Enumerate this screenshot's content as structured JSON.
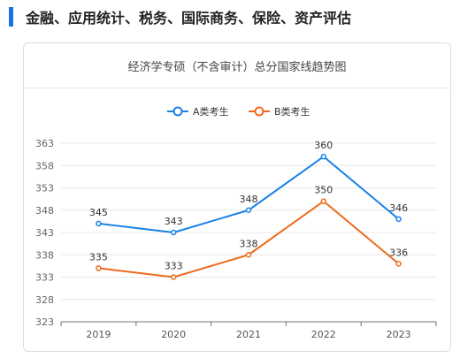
{
  "heading": "金融、应用统计、税务、国际商务、保险、资产评估",
  "colors": {
    "accent": "#1a73e8",
    "series_a": "#1a82e8",
    "series_b": "#ee6a1b"
  },
  "chart_data": {
    "type": "line",
    "title": "经济学专硕（不含审计）总分国家线趋势图",
    "xlabel": "",
    "ylabel": "",
    "categories": [
      "2019",
      "2020",
      "2021",
      "2022",
      "2023"
    ],
    "series": [
      {
        "name": "A类考生",
        "values": [
          345,
          343,
          348,
          360,
          346
        ]
      },
      {
        "name": "B类考生",
        "values": [
          335,
          333,
          338,
          350,
          336
        ]
      }
    ],
    "yticks": [
      323,
      328,
      333,
      338,
      343,
      348,
      353,
      358,
      363
    ],
    "ylim": [
      323,
      363
    ],
    "grid": true,
    "legend": "top-center"
  }
}
